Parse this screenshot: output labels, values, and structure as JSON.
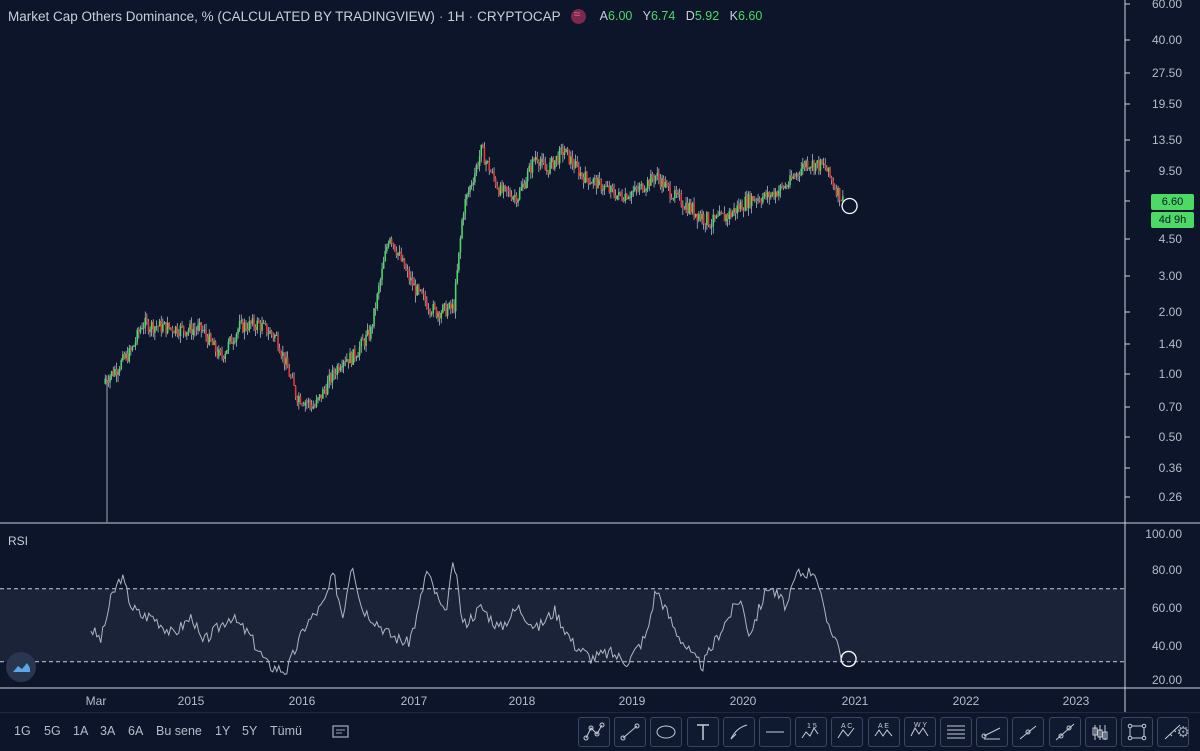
{
  "header": {
    "title": "Market Cap Others Dominance, % (CALCULATED BY TRADINGVIEW)",
    "interval": "1H",
    "exchange": "CRYPTOCAP",
    "ohlc": [
      {
        "key": "A",
        "value": "6.00"
      },
      {
        "key": "Y",
        "value": "6.74"
      },
      {
        "key": "D",
        "value": "5.92"
      },
      {
        "key": "K",
        "value": "6.60"
      }
    ]
  },
  "price_tag": {
    "value": "6.60",
    "countdown": "4d 9h"
  },
  "rsi_label": "RSI",
  "timeframes": [
    "1G",
    "5G",
    "1A",
    "3A",
    "6A",
    "Bu sene",
    "1Y",
    "5Y",
    "Tümü"
  ],
  "tools": [
    "pattern-tool",
    "trend-line-tool",
    "ellipse-tool",
    "text-tool",
    "brush-tool",
    "horizontal-line-tool",
    "elliott-wave-tool",
    "abcd-pattern-tool",
    "xabcd-pattern-tool",
    "head-shoulders-tool",
    "fib-retracement-tool",
    "ray-tool",
    "line-tool",
    "long-line-tool",
    "candle-type-tool",
    "rectangle-tool",
    "measure-tool"
  ],
  "tool_labels": {
    "elliott": "1 5",
    "abcd": "A C",
    "xabcd": "A E",
    "hs": "W Y"
  },
  "colors": {
    "background": "#0c1529",
    "up": "#4cd964",
    "down": "#e53935",
    "rsi_line": "#b0b6c2",
    "accent": "#4cd964"
  },
  "chart_data": [
    {
      "type": "candlestick",
      "scale": "log",
      "y_ticks": [
        "0.26",
        "0.36",
        "0.50",
        "0.70",
        "1.00",
        "1.40",
        "2.00",
        "3.00",
        "4.50",
        "6.60",
        "9.50",
        "13.50",
        "19.50",
        "27.50",
        "40.00",
        "60.00"
      ],
      "x_ticks": [
        "Mar",
        "2015",
        "2016",
        "2017",
        "2018",
        "2019",
        "2020",
        "2021",
        "2022",
        "2023"
      ],
      "x": [
        "2014-02",
        "2014-03",
        "2014-04",
        "2014-06",
        "2014-08",
        "2014-09",
        "2014-11",
        "2015-01",
        "2015-03",
        "2015-05",
        "2015-07",
        "2015-09",
        "2015-11",
        "2016-01",
        "2016-03",
        "2016-05",
        "2016-06",
        "2016-07",
        "2016-09",
        "2016-11",
        "2017-01",
        "2017-02",
        "2017-04",
        "2017-06",
        "2017-07",
        "2017-09",
        "2017-11",
        "2018-01",
        "2018-03",
        "2018-04",
        "2018-06",
        "2018-08",
        "2018-10",
        "2018-12",
        "2019-02",
        "2019-04",
        "2019-06",
        "2019-08",
        "2019-10",
        "2019-12",
        "2020-02",
        "2020-04",
        "2020-06",
        "2020-08",
        "2020-10",
        "2020-11",
        "2020-12"
      ],
      "values": [
        0.9,
        0.8,
        0.85,
        1.0,
        1.3,
        1.75,
        1.7,
        1.65,
        1.65,
        1.2,
        1.7,
        1.75,
        1.5,
        0.8,
        0.7,
        1.0,
        1.2,
        1.2,
        1.6,
        4.8,
        3.0,
        2.5,
        2.0,
        2.1,
        6.0,
        12.0,
        7.5,
        7.0,
        11.5,
        9.5,
        12.0,
        9.0,
        8.0,
        7.0,
        7.5,
        9.0,
        7.0,
        6.0,
        5.3,
        5.8,
        6.8,
        7.0,
        8.0,
        10.5,
        10.0,
        8.0,
        6.6
      ],
      "last": {
        "open": 6.0,
        "high": 6.74,
        "low": 5.92,
        "close": 6.6
      }
    },
    {
      "type": "line",
      "title": "RSI",
      "ylim": [
        20,
        100
      ],
      "y_ticks": [
        "20.00",
        "40.00",
        "60.00",
        "80.00",
        "100.00"
      ],
      "bands": [
        30,
        70
      ],
      "x": [
        "2014-04",
        "2014-05",
        "2014-06",
        "2014-07",
        "2014-08",
        "2014-09",
        "2014-10",
        "2014-12",
        "2015-02",
        "2015-03",
        "2015-05",
        "2015-06",
        "2015-08",
        "2015-10",
        "2015-12",
        "2016-02",
        "2016-04",
        "2016-05",
        "2016-06",
        "2016-07",
        "2016-08",
        "2016-09",
        "2016-11",
        "2017-01",
        "2017-02",
        "2017-03",
        "2017-05",
        "2017-06",
        "2017-07",
        "2017-09",
        "2017-11",
        "2018-01",
        "2018-03",
        "2018-05",
        "2018-07",
        "2018-09",
        "2018-11",
        "2019-01",
        "2019-03",
        "2019-04",
        "2019-06",
        "2019-08",
        "2019-09",
        "2019-11",
        "2020-01",
        "2020-02",
        "2020-04",
        "2020-06",
        "2020-07",
        "2020-09",
        "2020-10",
        "2020-11",
        "2020-12"
      ],
      "values": [
        48,
        42,
        65,
        77,
        60,
        55,
        55,
        45,
        55,
        40,
        50,
        55,
        45,
        28,
        25,
        50,
        62,
        78,
        55,
        86,
        60,
        55,
        45,
        40,
        55,
        80,
        55,
        85,
        50,
        60,
        48,
        60,
        48,
        58,
        40,
        32,
        35,
        30,
        45,
        70,
        48,
        32,
        28,
        48,
        65,
        45,
        72,
        60,
        78,
        80,
        55,
        45,
        31
      ]
    }
  ]
}
